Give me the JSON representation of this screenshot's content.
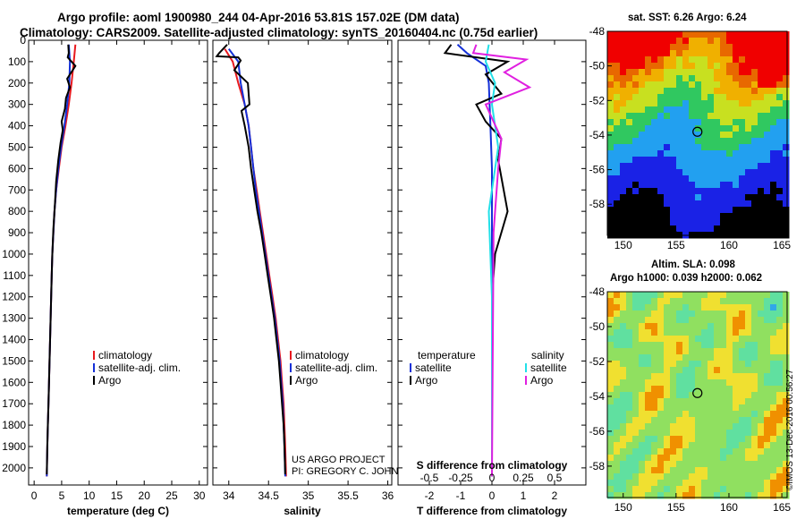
{
  "titles": {
    "line1": "Argo profile: aoml 1900980_244 04-Apr-2016 53.81S 157.02E (DM data)",
    "line2": "Climatology: CARS2009. Satellite-adjusted climatology: synTS_20160404.nc (0.75d earlier)",
    "sst": "sat. SST: 6.26 Argo: 6.24",
    "sla1": "Altim. SLA: 0.098",
    "sla2": "Argo h1000: 0.039 h2000: 0.062",
    "credit": "©IMOS 13-Dec-2016 00:56:27"
  },
  "colors": {
    "climatology": "#e8191e",
    "satellite": "#1430d8",
    "argo": "#000000",
    "cyan": "#22e0e8",
    "magenta": "#e020e0"
  },
  "chart_data": [
    {
      "type": "line",
      "id": "temperature",
      "xlabel": "temperature (deg C)",
      "xlim": [
        -1,
        31.5
      ],
      "ylim": [
        2080,
        0
      ],
      "xticks": [
        "0",
        "5",
        "10",
        "15",
        "20",
        "25",
        "30"
      ],
      "xtick_values": [
        0,
        5,
        10,
        15,
        20,
        25,
        30
      ],
      "yticks": [
        "0",
        "100",
        "200",
        "300",
        "400",
        "500",
        "600",
        "700",
        "800",
        "900",
        "1000",
        "1100",
        "1200",
        "1300",
        "1400",
        "1500",
        "1600",
        "1700",
        "1800",
        "1900",
        "2000"
      ],
      "ytick_values": [
        0,
        100,
        200,
        300,
        400,
        500,
        600,
        700,
        800,
        900,
        1000,
        1100,
        1200,
        1300,
        1400,
        1500,
        1600,
        1700,
        1800,
        1900,
        2000
      ],
      "legend": [
        "climatology",
        "satellite-adj. clim.",
        "Argo"
      ],
      "series": [
        {
          "name": "climatology",
          "color": "#e8191e",
          "points": [
            [
              7.5,
              20
            ],
            [
              7.2,
              100
            ],
            [
              6.8,
              200
            ],
            [
              6.3,
              300
            ],
            [
              5.7,
              400
            ],
            [
              5.0,
              500
            ],
            [
              4.5,
              600
            ],
            [
              4.0,
              700
            ],
            [
              3.7,
              800
            ],
            [
              3.5,
              900
            ],
            [
              3.3,
              1000
            ],
            [
              3.2,
              1100
            ],
            [
              3.1,
              1200
            ],
            [
              3.0,
              1300
            ],
            [
              2.9,
              1400
            ],
            [
              2.8,
              1500
            ],
            [
              2.7,
              1600
            ],
            [
              2.6,
              1700
            ],
            [
              2.5,
              1800
            ],
            [
              2.4,
              1900
            ],
            [
              2.3,
              2040
            ]
          ]
        },
        {
          "name": "satellite-adj. clim.",
          "color": "#1430d8",
          "points": [
            [
              6.3,
              20
            ],
            [
              6.5,
              100
            ],
            [
              6.4,
              200
            ],
            [
              6.0,
              300
            ],
            [
              5.5,
              400
            ],
            [
              4.9,
              500
            ],
            [
              4.4,
              600
            ],
            [
              4.0,
              700
            ],
            [
              3.7,
              800
            ],
            [
              3.5,
              900
            ],
            [
              3.3,
              1000
            ],
            [
              3.2,
              1100
            ],
            [
              3.1,
              1200
            ],
            [
              3.0,
              1300
            ],
            [
              2.9,
              1400
            ],
            [
              2.8,
              1500
            ],
            [
              2.7,
              1600
            ],
            [
              2.6,
              1700
            ],
            [
              2.5,
              1800
            ],
            [
              2.4,
              1900
            ],
            [
              2.3,
              2040
            ]
          ]
        },
        {
          "name": "Argo",
          "color": "#000000",
          "points": [
            [
              6.2,
              20
            ],
            [
              6.3,
              60
            ],
            [
              6.1,
              80
            ],
            [
              7.5,
              120
            ],
            [
              6.0,
              180
            ],
            [
              6.5,
              220
            ],
            [
              5.8,
              270
            ],
            [
              5.6,
              320
            ],
            [
              5.0,
              380
            ],
            [
              5.2,
              420
            ],
            [
              4.8,
              480
            ],
            [
              4.4,
              560
            ],
            [
              4.0,
              660
            ],
            [
              3.8,
              760
            ],
            [
              3.5,
              880
            ],
            [
              3.3,
              1000
            ],
            [
              3.2,
              1100
            ],
            [
              3.1,
              1200
            ],
            [
              3.0,
              1300
            ],
            [
              2.9,
              1400
            ],
            [
              2.8,
              1500
            ],
            [
              2.7,
              1600
            ],
            [
              2.6,
              1700
            ],
            [
              2.5,
              1800
            ],
            [
              2.4,
              1900
            ],
            [
              2.3,
              2030
            ]
          ]
        }
      ]
    },
    {
      "type": "line",
      "id": "salinity",
      "xlabel": "salinity",
      "xlim": [
        33.8,
        36.05
      ],
      "ylim": [
        2080,
        0
      ],
      "xticks": [
        "34",
        "34.5",
        "35",
        "35.5",
        "36"
      ],
      "xtick_values": [
        34,
        34.5,
        35,
        35.5,
        36
      ],
      "legend": [
        "climatology",
        "satellite-adj. clim.",
        "Argo"
      ],
      "annotations": [
        "US ARGO PROJECT",
        "PI: GREGORY C. JOHNSON"
      ],
      "series": [
        {
          "name": "climatology",
          "color": "#e8191e",
          "points": [
            [
              33.95,
              40
            ],
            [
              34.05,
              100
            ],
            [
              34.12,
              200
            ],
            [
              34.2,
              300
            ],
            [
              34.25,
              400
            ],
            [
              34.28,
              500
            ],
            [
              34.31,
              600
            ],
            [
              34.35,
              700
            ],
            [
              34.39,
              800
            ],
            [
              34.43,
              900
            ],
            [
              34.47,
              1000
            ],
            [
              34.51,
              1100
            ],
            [
              34.55,
              1200
            ],
            [
              34.59,
              1300
            ],
            [
              34.62,
              1400
            ],
            [
              34.65,
              1500
            ],
            [
              34.67,
              1600
            ],
            [
              34.69,
              1700
            ],
            [
              34.7,
              1800
            ],
            [
              34.71,
              1900
            ],
            [
              34.72,
              2040
            ]
          ]
        },
        {
          "name": "satellite-adj. clim.",
          "color": "#1430d8",
          "points": [
            [
              34.0,
              40
            ],
            [
              34.12,
              100
            ],
            [
              34.15,
              200
            ],
            [
              34.2,
              300
            ],
            [
              34.25,
              400
            ],
            [
              34.28,
              500
            ],
            [
              34.31,
              600
            ],
            [
              34.34,
              700
            ],
            [
              34.38,
              800
            ],
            [
              34.42,
              900
            ],
            [
              34.46,
              1000
            ],
            [
              34.5,
              1100
            ],
            [
              34.54,
              1200
            ],
            [
              34.58,
              1300
            ],
            [
              34.61,
              1400
            ],
            [
              34.64,
              1500
            ],
            [
              34.66,
              1600
            ],
            [
              34.68,
              1700
            ],
            [
              34.69,
              1800
            ],
            [
              34.7,
              1900
            ],
            [
              34.71,
              2040
            ]
          ]
        },
        {
          "name": "Argo",
          "color": "#000000",
          "points": [
            [
              33.98,
              20
            ],
            [
              33.88,
              60
            ],
            [
              33.85,
              75
            ],
            [
              34.12,
              80
            ],
            [
              34.15,
              95
            ],
            [
              34.07,
              140
            ],
            [
              34.24,
              200
            ],
            [
              34.26,
              300
            ],
            [
              34.16,
              330
            ],
            [
              34.2,
              400
            ],
            [
              34.25,
              500
            ],
            [
              34.28,
              600
            ],
            [
              34.32,
              700
            ],
            [
              34.36,
              800
            ],
            [
              34.41,
              900
            ],
            [
              34.45,
              1000
            ],
            [
              34.49,
              1100
            ],
            [
              34.53,
              1200
            ],
            [
              34.57,
              1300
            ],
            [
              34.6,
              1400
            ],
            [
              34.63,
              1500
            ],
            [
              34.65,
              1600
            ],
            [
              34.67,
              1700
            ],
            [
              34.69,
              1800
            ],
            [
              34.7,
              1900
            ],
            [
              34.71,
              2030
            ]
          ]
        }
      ]
    },
    {
      "type": "line",
      "id": "differences",
      "xlabel": "T difference from climatology",
      "xlabel_top": "S difference from climatology",
      "xlim": [
        -3,
        3
      ],
      "ylim": [
        2080,
        0
      ],
      "xticks": [
        "-2",
        "-1",
        "0",
        "1",
        "2"
      ],
      "xtick_values": [
        -2,
        -1,
        0,
        1,
        2
      ],
      "xticks_top": [
        "-0.5",
        "-0.25",
        "0",
        "0.25",
        "0.5"
      ],
      "xtick_top_values": [
        -2,
        -1,
        0,
        1,
        2
      ],
      "legend_left_title": "temperature",
      "legend_right_title": "salinity",
      "legend": [
        "satellite",
        "Argo",
        "satellite",
        "Argo"
      ],
      "series": [
        {
          "name": "T satellite",
          "color": "#1430d8",
          "points": [
            [
              -1.1,
              20
            ],
            [
              -0.8,
              60
            ],
            [
              -0.2,
              120
            ],
            [
              -0.1,
              200
            ],
            [
              -0.05,
              400
            ],
            [
              0.0,
              600
            ],
            [
              0.0,
              1000
            ],
            [
              0.0,
              2040
            ]
          ]
        },
        {
          "name": "T Argo",
          "color": "#000000",
          "points": [
            [
              -1.3,
              20
            ],
            [
              -1.5,
              60
            ],
            [
              0.5,
              100
            ],
            [
              -0.2,
              160
            ],
            [
              0.3,
              250
            ],
            [
              -0.5,
              300
            ],
            [
              -0.2,
              380
            ],
            [
              0.3,
              460
            ],
            [
              0.2,
              560
            ],
            [
              0.5,
              800
            ],
            [
              0.1,
              1000
            ],
            [
              0.0,
              1200
            ],
            [
              0.0,
              2040
            ]
          ]
        },
        {
          "name": "S satellite",
          "color": "#22e0e8",
          "points": [
            [
              -0.1,
              20
            ],
            [
              -0.2,
              100
            ],
            [
              0.1,
              200
            ],
            [
              0.0,
              300
            ],
            [
              0.2,
              500
            ],
            [
              -0.1,
              800
            ],
            [
              0.0,
              1200
            ],
            [
              0.0,
              2040
            ]
          ]
        },
        {
          "name": "S Argo",
          "color": "#e020e0",
          "points": [
            [
              -0.5,
              20
            ],
            [
              -0.6,
              60
            ],
            [
              1.1,
              90
            ],
            [
              0.4,
              150
            ],
            [
              1.2,
              220
            ],
            [
              -0.2,
              300
            ],
            [
              0.3,
              460
            ],
            [
              0.2,
              600
            ],
            [
              0.05,
              900
            ],
            [
              0.0,
              2040
            ]
          ]
        }
      ]
    },
    {
      "type": "heatmap",
      "id": "sst-map",
      "xticks": [
        "150",
        "155",
        "160",
        "165"
      ],
      "xtick_values": [
        150,
        155,
        160,
        165
      ],
      "yticks": [
        "-48",
        "-50",
        "-52",
        "-54",
        "-56",
        "-58"
      ],
      "ytick_values": [
        -48,
        -50,
        -52,
        -54,
        -56,
        -58
      ],
      "xlim": [
        148.5,
        165.5
      ],
      "ylim": [
        -59.8,
        -48
      ],
      "marker": [
        157.02,
        -53.81
      ]
    },
    {
      "type": "heatmap",
      "id": "sla-map",
      "xticks": [
        "150",
        "155",
        "160",
        "165"
      ],
      "xtick_values": [
        150,
        155,
        160,
        165
      ],
      "yticks": [
        "-48",
        "-50",
        "-52",
        "-54",
        "-56",
        "-58"
      ],
      "ytick_values": [
        -48,
        -50,
        -52,
        -54,
        -56,
        -58
      ],
      "xlim": [
        148.5,
        165.5
      ],
      "ylim": [
        -59.8,
        -48
      ],
      "marker": [
        157.02,
        -53.81
      ]
    }
  ]
}
